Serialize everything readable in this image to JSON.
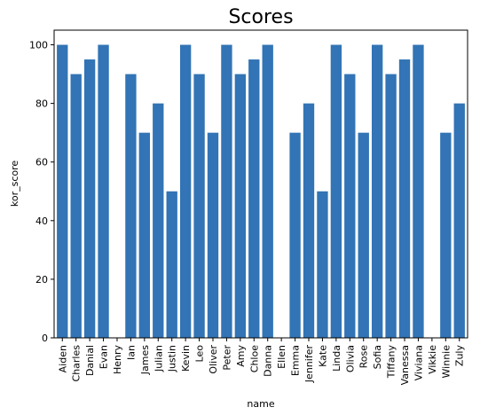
{
  "chart_data": {
    "type": "bar",
    "title": "Scores",
    "xlabel": "name",
    "ylabel": "kor_score",
    "ylim": [
      0,
      105
    ],
    "yticks": [
      0,
      20,
      40,
      60,
      80,
      100
    ],
    "grid": false,
    "bar_color": "#3274b5",
    "categories": [
      "Aiden",
      "Charles",
      "Danial",
      "Evan",
      "Henry",
      "Ian",
      "James",
      "Julian",
      "Justin",
      "Kevin",
      "Leo",
      "Oliver",
      "Peter",
      "Amy",
      "Chloe",
      "Danna",
      "Ellen",
      "Emma",
      "Jennifer",
      "Kate",
      "Linda",
      "Olivia",
      "Rose",
      "Sofia",
      "Tiffany",
      "Vanessa",
      "Viviana",
      "Vikkie",
      "Winnie",
      "Zuly"
    ],
    "values": [
      100,
      90,
      95,
      100,
      0,
      90,
      70,
      80,
      50,
      100,
      90,
      70,
      100,
      90,
      95,
      100,
      0,
      70,
      80,
      50,
      100,
      90,
      70,
      100,
      90,
      95,
      100,
      0,
      70,
      80
    ]
  }
}
